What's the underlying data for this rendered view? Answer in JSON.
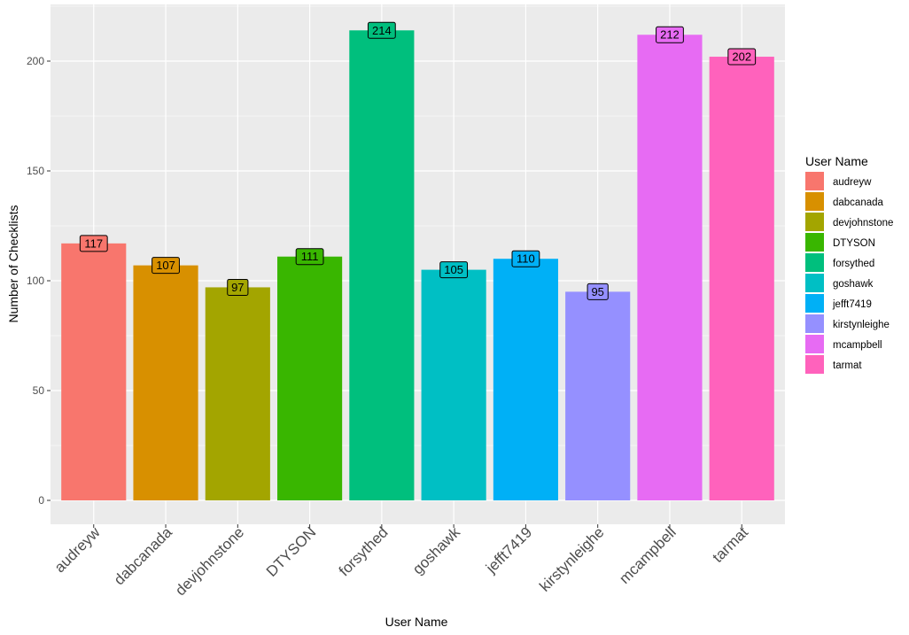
{
  "chart_data": {
    "type": "bar",
    "xlabel": "User Name",
    "ylabel": "Number of Checklists",
    "ylim": [
      0,
      225
    ],
    "yticks": [
      0,
      50,
      100,
      150,
      200
    ],
    "grid": true,
    "legend_title": "User Name",
    "legend_position": "right",
    "categories": [
      "audreyw",
      "dabcanada",
      "devjohnstone",
      "DTYSON",
      "forsythed",
      "goshawk",
      "jefft7419",
      "kirstynleighe",
      "mcampbell",
      "tarmat"
    ],
    "values": [
      117,
      107,
      97,
      111,
      214,
      105,
      110,
      95,
      212,
      202
    ],
    "colors": [
      "#F8766D",
      "#D89000",
      "#A3A500",
      "#39B600",
      "#00BF7D",
      "#00BFC4",
      "#00B0F6",
      "#9590FF",
      "#E76BF3",
      "#FF62BC"
    ]
  }
}
